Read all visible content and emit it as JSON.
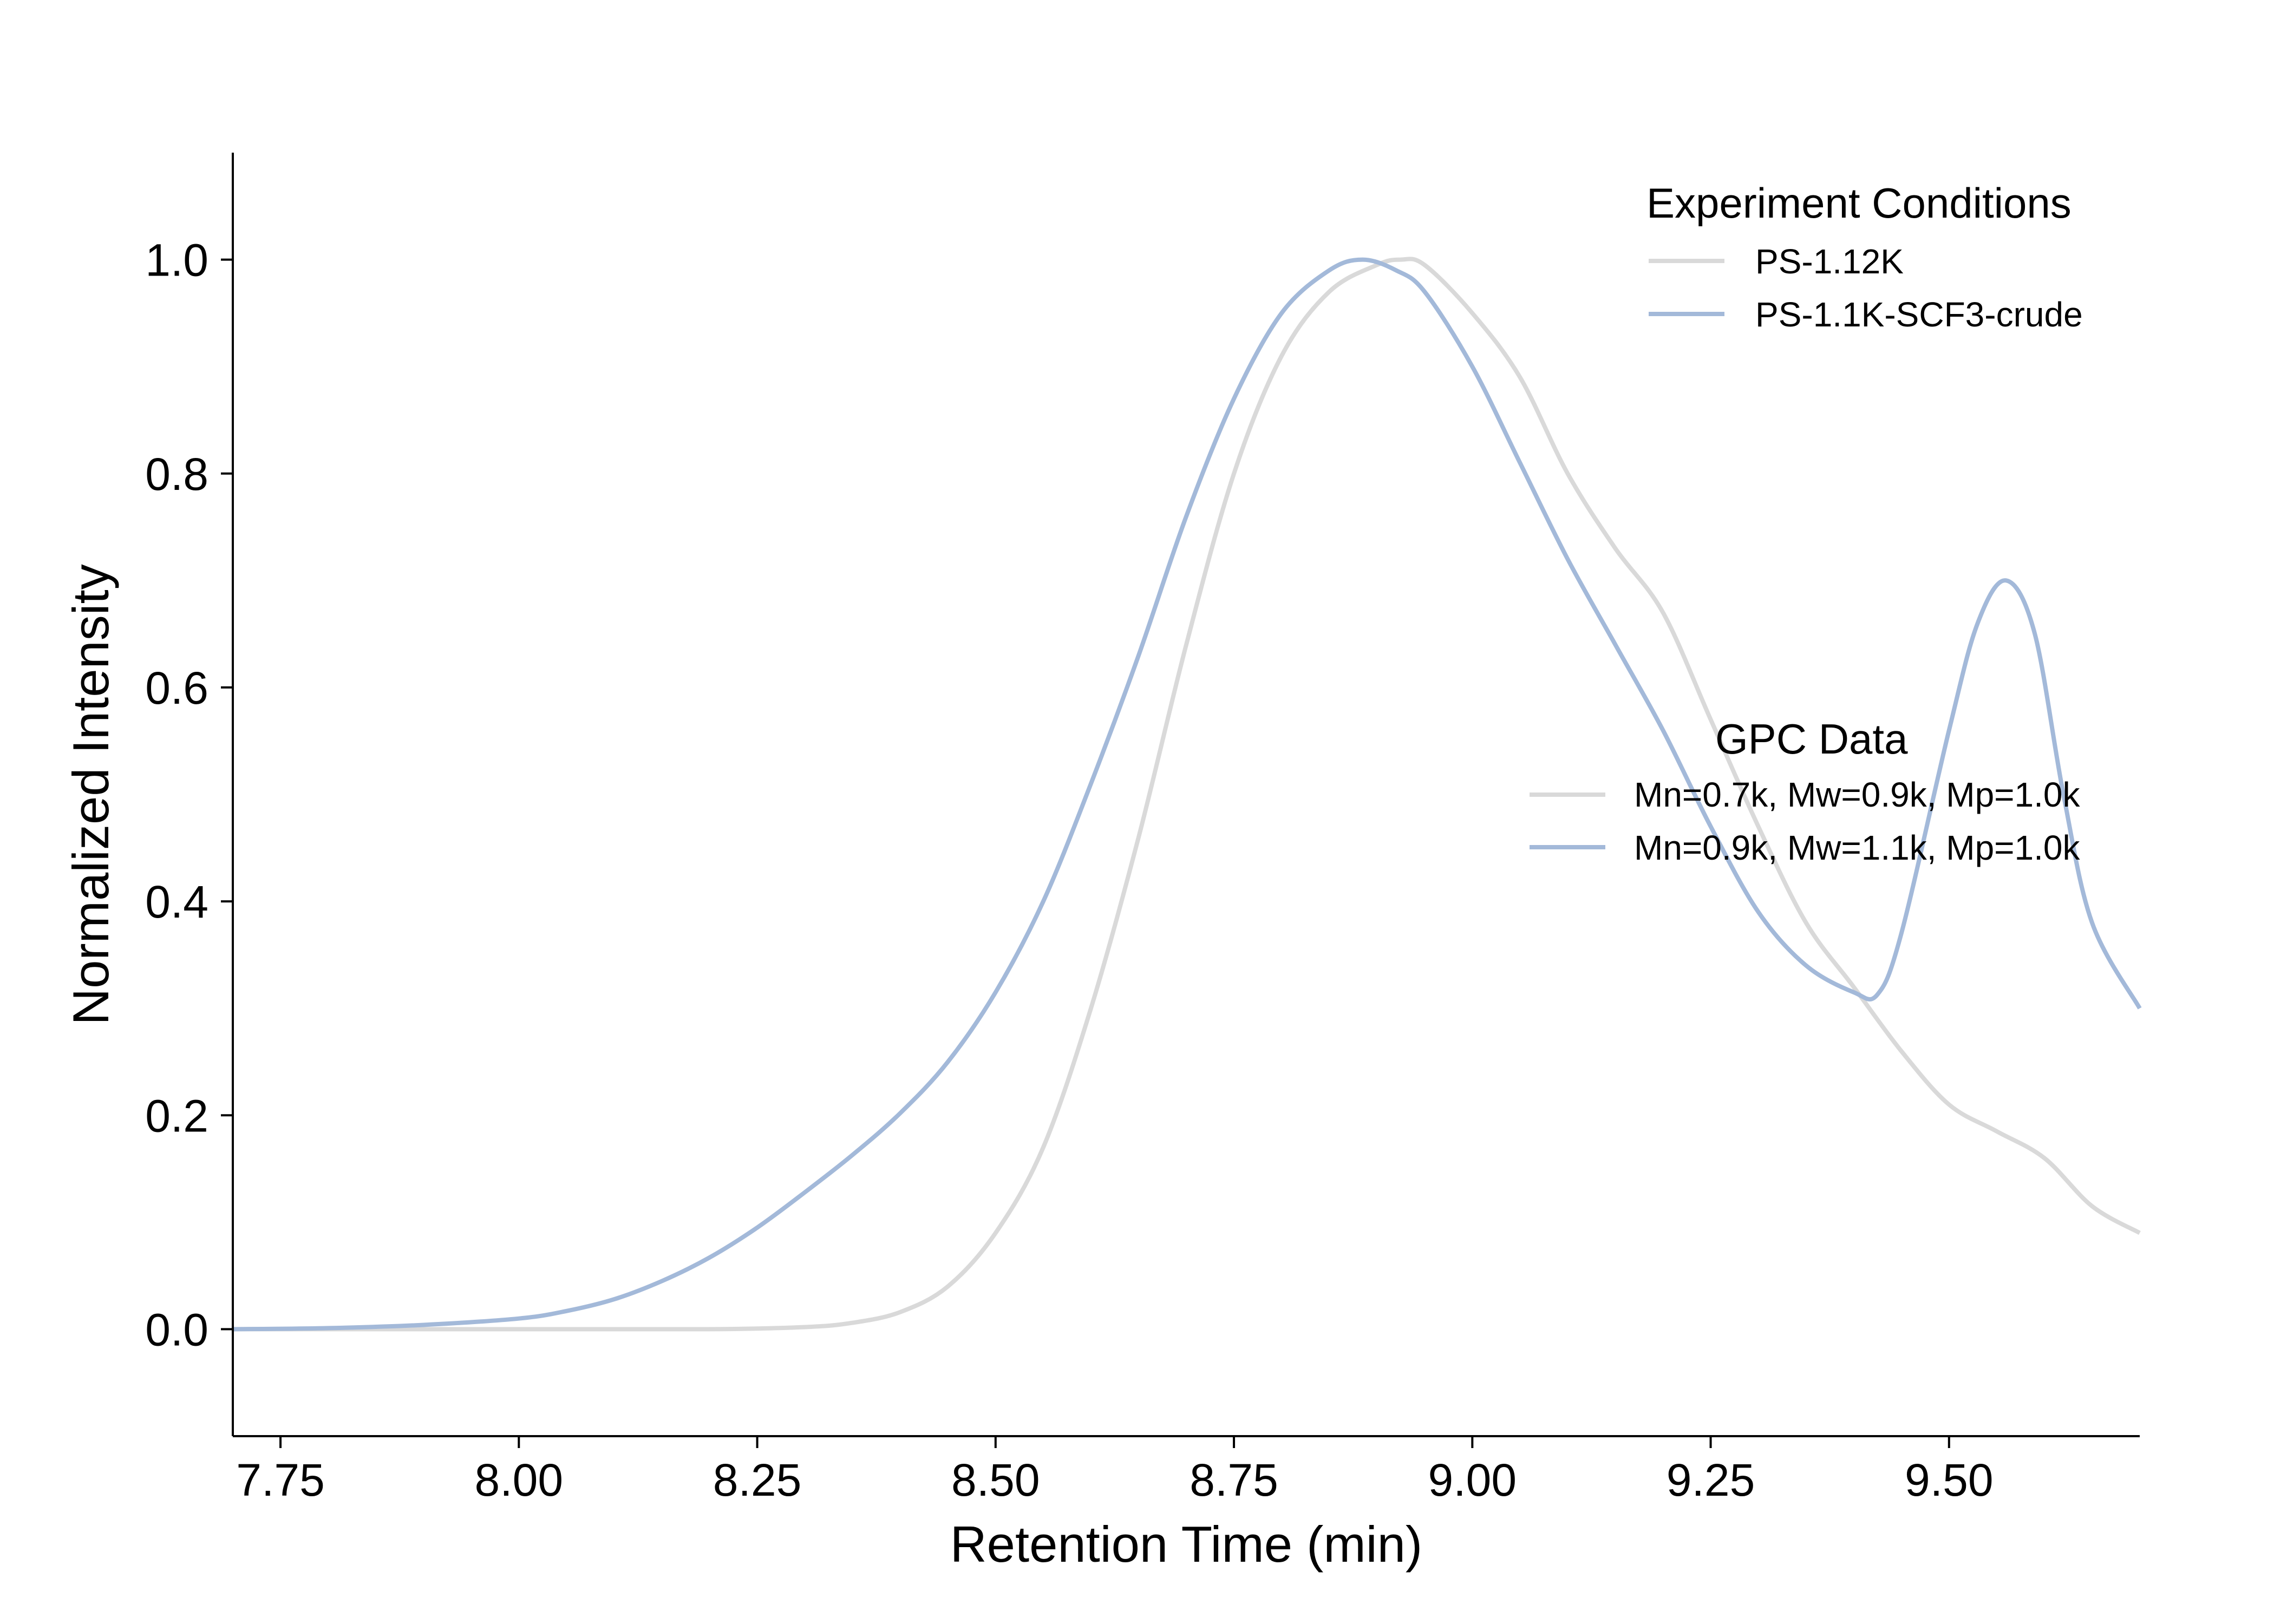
{
  "chart_data": {
    "type": "line",
    "title": "",
    "xlabel": "Retention Time (min)",
    "ylabel": "Normalized Intensity",
    "xlim": [
      7.7,
      9.7
    ],
    "ylim": [
      -0.1,
      1.1
    ],
    "xticks": [
      7.75,
      8.0,
      8.25,
      8.5,
      8.75,
      9.0,
      9.25,
      9.5
    ],
    "xtick_labels": [
      "7.75",
      "8.00",
      "8.25",
      "8.50",
      "8.75",
      "9.00",
      "9.25",
      "9.50"
    ],
    "yticks": [
      0.0,
      0.2,
      0.4,
      0.6,
      0.8,
      1.0
    ],
    "ytick_labels": [
      "0.0",
      "0.2",
      "0.4",
      "0.6",
      "0.8",
      "1.0"
    ],
    "grid": false,
    "series": [
      {
        "name": "PS-1.12K",
        "color": "#d9d9d9",
        "x": [
          7.7,
          8.0,
          8.2,
          8.3,
          8.35,
          8.4,
          8.45,
          8.5,
          8.55,
          8.6,
          8.65,
          8.7,
          8.75,
          8.8,
          8.85,
          8.9,
          8.925,
          8.95,
          9.0,
          9.05,
          9.1,
          9.15,
          9.2,
          9.25,
          9.3,
          9.35,
          9.4,
          9.45,
          9.5,
          9.55,
          9.6,
          9.65,
          9.7
        ],
        "y": [
          0.0,
          0.0,
          0.0,
          0.002,
          0.006,
          0.016,
          0.04,
          0.09,
          0.17,
          0.3,
          0.46,
          0.64,
          0.8,
          0.91,
          0.97,
          0.995,
          1.0,
          0.995,
          0.95,
          0.89,
          0.8,
          0.73,
          0.67,
          0.57,
          0.47,
          0.38,
          0.32,
          0.26,
          0.21,
          0.185,
          0.16,
          0.115,
          0.09
        ]
      },
      {
        "name": "PS-1.1K-SCF3-crude",
        "color": "#a3b9d9",
        "x": [
          7.7,
          7.8,
          7.9,
          8.0,
          8.05,
          8.1,
          8.15,
          8.2,
          8.25,
          8.3,
          8.35,
          8.4,
          8.45,
          8.5,
          8.55,
          8.6,
          8.65,
          8.7,
          8.75,
          8.8,
          8.85,
          8.885,
          8.92,
          8.95,
          9.0,
          9.05,
          9.1,
          9.15,
          9.2,
          9.25,
          9.3,
          9.35,
          9.4,
          9.425,
          9.45,
          9.5,
          9.53,
          9.56,
          9.59,
          9.62,
          9.65,
          9.7
        ],
        "y": [
          0.0,
          0.001,
          0.004,
          0.01,
          0.017,
          0.028,
          0.045,
          0.067,
          0.095,
          0.128,
          0.163,
          0.202,
          0.25,
          0.315,
          0.4,
          0.51,
          0.63,
          0.76,
          0.87,
          0.95,
          0.99,
          1.0,
          0.99,
          0.97,
          0.9,
          0.81,
          0.72,
          0.64,
          0.56,
          0.47,
          0.39,
          0.34,
          0.315,
          0.313,
          0.37,
          0.56,
          0.66,
          0.7,
          0.65,
          0.5,
          0.38,
          0.3
        ]
      }
    ],
    "legends": [
      {
        "title": "Experiment Conditions",
        "placement": "upper-right",
        "entries": [
          {
            "label": "PS-1.12K",
            "color": "#d9d9d9"
          },
          {
            "label": "PS-1.1K-SCF3-crude",
            "color": "#a3b9d9"
          }
        ]
      },
      {
        "title": "GPC Data",
        "placement": "center-right",
        "entries": [
          {
            "label": "Mn=0.7k, Mw=0.9k, Mp=1.0k",
            "color": "#d9d9d9"
          },
          {
            "label": "Mn=0.9k, Mw=1.1k, Mp=1.0k",
            "color": "#a3b9d9"
          }
        ]
      }
    ]
  }
}
